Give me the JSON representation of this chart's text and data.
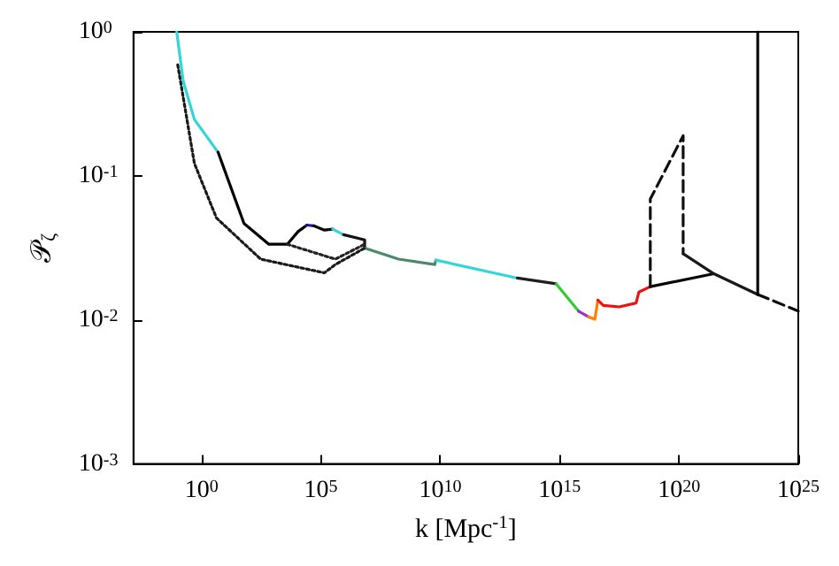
{
  "chart_data": {
    "type": "line",
    "xlabel": "k [Mpc$^{-1}$]",
    "ylabel": "𝒫$_{ζ}$",
    "log": "xy",
    "grid": false,
    "marker": "none",
    "xlim": [
      0.0014,
      1e+25
    ],
    "ylim": [
      0.001,
      1
    ],
    "xticks": [
      {
        "value": 1,
        "label": "10$^{0}$"
      },
      {
        "value": 100000.0,
        "label": "10$^{5}$"
      },
      {
        "value": 10000000000.0,
        "label": "10$^{10}$"
      },
      {
        "value": 1000000000000000.0,
        "label": "10$^{15}$"
      },
      {
        "value": 1e+20,
        "label": "10$^{20}$"
      },
      {
        "value": 1e+25,
        "label": "10$^{25}$"
      }
    ],
    "yticks": [
      {
        "value": 0.001,
        "label": "10$^{-3}$"
      },
      {
        "value": 0.01,
        "label": "10$^{-2}$"
      },
      {
        "value": 0.1,
        "label": "10$^{-1}$"
      },
      {
        "value": 1,
        "label": "10$^{0}$"
      }
    ],
    "series": [
      {
        "color": "#33d6d6",
        "line_style": "solid",
        "x": [
          0.091,
          0.17,
          0.5,
          4.9
        ],
        "values": [
          1,
          0.455,
          0.246,
          0.146
        ]
      },
      {
        "color": "#000000",
        "line_style": "solid",
        "x": [
          4.9,
          60,
          660,
          3900,
          11000,
          26000
        ],
        "values": [
          0.146,
          0.0467,
          0.0335,
          0.0335,
          0.041,
          0.0455
        ]
      },
      {
        "color": "#1a1aa0",
        "line_style": "solid",
        "x": [
          26000,
          50000
        ],
        "values": [
          0.0455,
          0.045
        ]
      },
      {
        "color": "#0a0a0a",
        "line_style": "solid",
        "x": [
          50000,
          140000,
          310000
        ],
        "values": [
          0.045,
          0.042,
          0.0426
        ]
      },
      {
        "color": "#33d6d6",
        "line_style": "solid",
        "x": [
          310000,
          890000
        ],
        "values": [
          0.0426,
          0.039
        ]
      },
      {
        "color": "#141414",
        "line_style": "solid",
        "x": [
          890000,
          6800000,
          6800000
        ],
        "values": [
          0.039,
          0.0359,
          0.0315
        ]
      },
      {
        "color": "#4a8a6a",
        "line_style": "solid",
        "x": [
          6800000,
          180000000,
          5900000000,
          6500000000
        ],
        "values": [
          0.0315,
          0.0264,
          0.0242,
          0.026
        ]
      },
      {
        "color": "#33d6d6",
        "line_style": "solid",
        "x": [
          6500000000,
          17000000000000.0
        ],
        "values": [
          0.026,
          0.0195
        ]
      },
      {
        "color": "#1e1e1e",
        "line_style": "solid",
        "x": [
          17000000000000.0,
          720000000000000.0
        ],
        "values": [
          0.0195,
          0.0178
        ]
      },
      {
        "color": "#33cc33",
        "line_style": "solid",
        "x": [
          720000000000000.0,
          6200000000000000.0
        ],
        "values": [
          0.0178,
          0.0115
        ]
      },
      {
        "color": "#9933cc",
        "line_style": "solid",
        "x": [
          6200000000000000.0,
          1.6e+16
        ],
        "values": [
          0.0115,
          0.0105
        ]
      },
      {
        "color": "#ff7f00",
        "line_style": "solid",
        "x": [
          1.6e+16,
          3e+16,
          4e+16
        ],
        "values": [
          0.0105,
          0.0101,
          0.0137
        ]
      },
      {
        "color": "#ee1111",
        "line_style": "solid",
        "x": [
          4e+16,
          6.8e+16,
          3.2e+17,
          1.6e+18,
          2.1e+18,
          6.3e+18
        ],
        "values": [
          0.0137,
          0.0126,
          0.0123,
          0.0131,
          0.0156,
          0.017
        ]
      },
      {
        "color": "#050505",
        "line_style": "solid",
        "x": [
          6.3e+18,
          2.9e+21
        ],
        "values": [
          0.017,
          0.0209
        ]
      },
      {
        "color": "#101010",
        "line_style": "dashed",
        "x": [
          6.3e+18,
          6.3e+18,
          1.5e+20,
          1.5e+20
        ],
        "values": [
          0.017,
          0.069,
          0.19,
          0.0288
        ]
      },
      {
        "color": "#191919",
        "line_style": "solid",
        "x": [
          1.5e+20,
          2.9e+21,
          2e+23
        ],
        "values": [
          0.0288,
          0.0209,
          0.015
        ]
      },
      {
        "color": "#0c0c0c",
        "line_style": "dashed",
        "x": [
          2e+23,
          1e+25
        ],
        "values": [
          0.015,
          0.0115
        ]
      },
      {
        "color": "#030303",
        "line_style": "solid",
        "x": [
          2e+23,
          2e+23
        ],
        "values": [
          0.015,
          1
        ]
      },
      {
        "color": "#1a1a1a",
        "line_style": "dotted",
        "x": [
          0.1,
          0.5,
          4.2,
          300,
          140000,
          400000,
          6800000
        ],
        "values": [
          0.59,
          0.122,
          0.051,
          0.0264,
          0.0212,
          0.0242,
          0.0315
        ]
      },
      {
        "color": "#242424",
        "line_style": "dotted",
        "x": [
          3900,
          400000,
          6800000
        ],
        "values": [
          0.0335,
          0.0264,
          0.0335
        ]
      }
    ]
  }
}
